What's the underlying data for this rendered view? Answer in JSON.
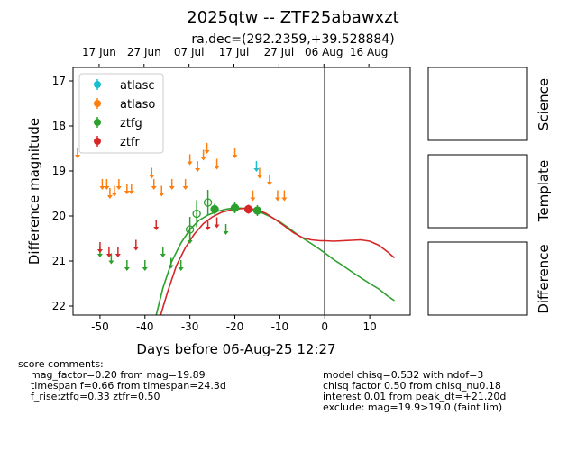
{
  "title": "2025qtw -- ZTF25abawxzt",
  "subtitle": "ra,dec=(292.2359,+39.528884)",
  "chart_data": {
    "type": "scatter",
    "xlabel": "Days before 06-Aug-25 12:27",
    "ylabel": "Difference magnitude",
    "xlim": [
      -56,
      19
    ],
    "ylim": [
      22.2,
      16.7
    ],
    "y_inverted": true,
    "x_ticks": [
      -50,
      -40,
      -30,
      -20,
      -10,
      0,
      10
    ],
    "y_ticks": [
      17,
      18,
      19,
      20,
      21,
      22
    ],
    "top_ticks": [
      {
        "x": -50.2,
        "label": "17 Jun"
      },
      {
        "x": -40.2,
        "label": "27 Jun"
      },
      {
        "x": -30.2,
        "label": "07 Jul"
      },
      {
        "x": -20.2,
        "label": "17 Jul"
      },
      {
        "x": -10.2,
        "label": "27 Jul"
      },
      {
        "x": -0.2,
        "label": "06 Aug"
      },
      {
        "x": 9.8,
        "label": "16 Aug"
      }
    ],
    "reference_line_x": 0,
    "legend": {
      "position": "top-left",
      "entries": [
        "atlasc",
        "atlaso",
        "ztfg",
        "ztfr"
      ]
    },
    "colors": {
      "atlasc": "#17becf",
      "atlaso": "#ff7f0e",
      "ztfg": "#2ca02c",
      "ztfr": "#d62728"
    },
    "series": [
      {
        "name": "atlasc",
        "detections": [],
        "limits": [
          {
            "x": -15.2,
            "y": 18.9
          }
        ]
      },
      {
        "name": "atlaso",
        "detections": [],
        "limits": [
          {
            "x": -55,
            "y": 18.6
          },
          {
            "x": -49.5,
            "y": 19.3
          },
          {
            "x": -48.5,
            "y": 19.3
          },
          {
            "x": -47.8,
            "y": 19.5
          },
          {
            "x": -46.8,
            "y": 19.45
          },
          {
            "x": -45.8,
            "y": 19.3
          },
          {
            "x": -44,
            "y": 19.4
          },
          {
            "x": -43,
            "y": 19.4
          },
          {
            "x": -38.5,
            "y": 19.05
          },
          {
            "x": -38,
            "y": 19.3
          },
          {
            "x": -36.3,
            "y": 19.45
          },
          {
            "x": -34,
            "y": 19.3
          },
          {
            "x": -31,
            "y": 19.3
          },
          {
            "x": -30,
            "y": 18.75
          },
          {
            "x": -28.3,
            "y": 18.9
          },
          {
            "x": -27,
            "y": 18.65
          },
          {
            "x": -26.2,
            "y": 18.5
          },
          {
            "x": -24,
            "y": 18.85
          },
          {
            "x": -20,
            "y": 18.6
          },
          {
            "x": -16,
            "y": 19.55
          },
          {
            "x": -14.5,
            "y": 19.05
          },
          {
            "x": -12.3,
            "y": 19.2
          },
          {
            "x": -10.5,
            "y": 19.55
          },
          {
            "x": -9,
            "y": 19.55
          }
        ]
      },
      {
        "name": "ztfg",
        "detections": [
          {
            "x": -30,
            "y": 20.3,
            "err": 0.28,
            "filled": false
          },
          {
            "x": -28.5,
            "y": 19.95,
            "err": 0.3,
            "filled": false
          },
          {
            "x": -26,
            "y": 19.7,
            "err": 0.28,
            "filled": false
          },
          {
            "x": -24.5,
            "y": 19.85,
            "err": 0.12,
            "filled": true
          },
          {
            "x": -20,
            "y": 19.82,
            "err": 0.12,
            "filled": true
          },
          {
            "x": -15,
            "y": 19.88,
            "err": 0.12,
            "filled": true
          }
        ],
        "limits": [
          {
            "x": -50,
            "y": 20.8
          },
          {
            "x": -47.5,
            "y": 20.95
          },
          {
            "x": -44,
            "y": 21.1
          },
          {
            "x": -40,
            "y": 21.1
          },
          {
            "x": -36,
            "y": 20.8
          },
          {
            "x": -34.2,
            "y": 21.05
          },
          {
            "x": -32,
            "y": 21.1
          },
          {
            "x": -30,
            "y": 20.5
          },
          {
            "x": -22,
            "y": 20.3
          }
        ]
      },
      {
        "name": "ztfr",
        "detections": [
          {
            "x": -17,
            "y": 19.85,
            "err": 0.1,
            "filled": true
          }
        ],
        "limits": [
          {
            "x": -50,
            "y": 20.7
          },
          {
            "x": -48,
            "y": 20.8
          },
          {
            "x": -46,
            "y": 20.8
          },
          {
            "x": -42,
            "y": 20.65
          },
          {
            "x": -37.5,
            "y": 20.2
          },
          {
            "x": -26,
            "y": 20.2
          },
          {
            "x": -24,
            "y": 20.15
          }
        ]
      }
    ],
    "models": [
      {
        "name": "ztfg",
        "points": [
          [
            -37.5,
            22.2
          ],
          [
            -36,
            21.6
          ],
          [
            -34,
            21.0
          ],
          [
            -32,
            20.6
          ],
          [
            -30,
            20.3
          ],
          [
            -28,
            20.1
          ],
          [
            -26,
            19.98
          ],
          [
            -24,
            19.9
          ],
          [
            -22,
            19.85
          ],
          [
            -20,
            19.82
          ],
          [
            -18,
            19.83
          ],
          [
            -16,
            19.86
          ],
          [
            -14,
            19.93
          ],
          [
            -12,
            20.02
          ],
          [
            -10,
            20.13
          ],
          [
            -8,
            20.27
          ],
          [
            -6,
            20.42
          ],
          [
            -4,
            20.55
          ],
          [
            -2,
            20.68
          ],
          [
            0,
            20.82
          ],
          [
            2,
            20.97
          ],
          [
            4,
            21.1
          ],
          [
            6,
            21.24
          ],
          [
            8,
            21.37
          ],
          [
            10,
            21.5
          ],
          [
            12,
            21.62
          ],
          [
            14,
            21.78
          ],
          [
            15.5,
            21.88
          ]
        ]
      },
      {
        "name": "ztfr",
        "points": [
          [
            -36.5,
            22.2
          ],
          [
            -35,
            21.7
          ],
          [
            -33,
            21.1
          ],
          [
            -31,
            20.7
          ],
          [
            -29,
            20.4
          ],
          [
            -27,
            20.17
          ],
          [
            -25,
            20.02
          ],
          [
            -23,
            19.92
          ],
          [
            -21,
            19.87
          ],
          [
            -19,
            19.84
          ],
          [
            -17,
            19.83
          ],
          [
            -15,
            19.86
          ],
          [
            -13,
            19.95
          ],
          [
            -11,
            20.08
          ],
          [
            -9,
            20.22
          ],
          [
            -7,
            20.37
          ],
          [
            -5,
            20.48
          ],
          [
            -3,
            20.53
          ],
          [
            -1,
            20.55
          ],
          [
            0,
            20.55
          ],
          [
            2,
            20.56
          ],
          [
            4,
            20.55
          ],
          [
            6,
            20.54
          ],
          [
            8,
            20.53
          ],
          [
            10,
            20.56
          ],
          [
            12,
            20.65
          ],
          [
            14,
            20.8
          ],
          [
            15.5,
            20.93
          ]
        ]
      }
    ]
  },
  "panels": {
    "science": "Science",
    "template": "Template",
    "difference": "Difference"
  },
  "comments_left": [
    "score comments:",
    "    mag_factor=0.20 from mag=19.89",
    "    timespan f=0.66 from timespan=24.3d",
    "    f_rise:ztfg=0.33 ztfr=0.50"
  ],
  "comments_right": [
    "model chisq=0.532 with ndof=3",
    "chisq factor 0.50 from chisq_nu0.18",
    "interest 0.01 from peak_dt=+21.20d",
    "exclude: mag=19.9>19.0 (faint lim)"
  ]
}
